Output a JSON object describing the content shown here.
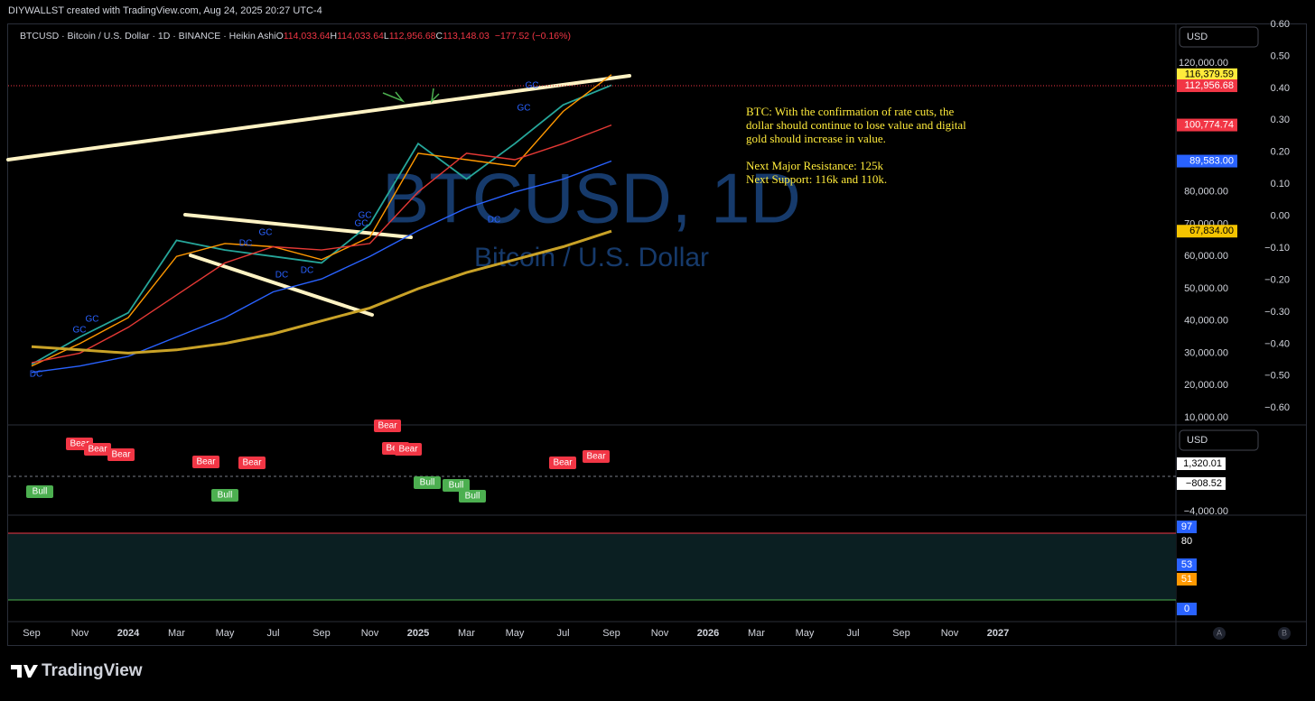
{
  "header": {
    "credit": "DIYWALLST created with TradingView.com, Aug 24, 2025 20:27 UTC-4"
  },
  "footer": {
    "brand": "TradingView"
  },
  "chart_data": {
    "type": "line",
    "legend": {
      "symbol": "BTCUSD · Bitcoin / U.S. Dollar · 1D · BINANCE · Heikin Ashi",
      "open_label": "O",
      "open": "114,033.64",
      "high_label": "H",
      "high": "114,033.64",
      "low_label": "L",
      "low": "112,956.68",
      "close_label": "C",
      "close": "113,148.03",
      "change": "−177.52 (−0.16%)"
    },
    "currency": "USD",
    "watermark_title": "BTCUSD, 1D",
    "watermark_subtitle": "Bitcoin / U.S. Dollar",
    "notes": [
      "BTC: With the confirmation of rate cuts, the",
      "dollar should continue to lose value and digital",
      "gold should increase in value.",
      "Next Major Resistance: 125k",
      "Next Support: 116k and 110k."
    ],
    "categories": [
      "Sep",
      "Nov",
      "2024",
      "Mar",
      "May",
      "Jul",
      "Sep",
      "Nov",
      "2025",
      "Mar",
      "May",
      "Jul",
      "Sep",
      "Nov",
      "2026",
      "Mar",
      "May",
      "Jul",
      "Sep",
      "Nov",
      "2027"
    ],
    "series": [
      {
        "color": "#26a69a",
        "values": [
          26500,
          35000,
          42500,
          65000,
          62000,
          60000,
          58000,
          70000,
          95000,
          84000,
          95000,
          107000,
          113148.03,
          null,
          null,
          null,
          null,
          null,
          null,
          null,
          null
        ]
      },
      {
        "color": "#ff9800",
        "values": [
          26000,
          33000,
          41000,
          60000,
          64000,
          63000,
          59000,
          66000,
          92000,
          90000,
          88000,
          105000,
          116379.59,
          null,
          null,
          null,
          null,
          null,
          null,
          null,
          null
        ]
      },
      {
        "color": "#e53935",
        "values": [
          27000,
          30000,
          38000,
          48000,
          58000,
          63000,
          62000,
          64000,
          80000,
          92000,
          90000,
          95000,
          100774.74,
          null,
          null,
          null,
          null,
          null,
          null,
          null,
          null
        ]
      },
      {
        "color": "#2962ff",
        "values": [
          24000,
          26000,
          29000,
          35000,
          41000,
          49000,
          53000,
          60000,
          68000,
          75000,
          80000,
          84000,
          89583,
          null,
          null,
          null,
          null,
          null,
          null,
          null,
          null
        ]
      },
      {
        "color": "#c9a227",
        "values": [
          32000,
          31000,
          30000,
          31000,
          33000,
          36000,
          40000,
          44000,
          50000,
          55000,
          59000,
          63000,
          67834,
          null,
          null,
          null,
          null,
          null,
          null,
          null,
          null
        ]
      }
    ],
    "ylim": [
      8000,
      132000
    ],
    "yticks": [
      {
        "value": 120000,
        "label": "120,000.00"
      },
      {
        "value": 80000,
        "label": "80,000.00"
      },
      {
        "value": 70000,
        "label": "70,000.00"
      },
      {
        "value": 60000,
        "label": "60,000.00"
      },
      {
        "value": 50000,
        "label": "50,000.00"
      },
      {
        "value": 40000,
        "label": "40,000.00"
      },
      {
        "value": 30000,
        "label": "30,000.00"
      },
      {
        "value": 20000,
        "label": "20,000.00"
      },
      {
        "value": 10000,
        "label": "10,000.00"
      }
    ],
    "y2lim": [
      -0.65,
      0.6
    ],
    "y2ticks": [
      {
        "value": 0.6,
        "label": "0.60"
      },
      {
        "value": 0.5,
        "label": "0.50"
      },
      {
        "value": 0.4,
        "label": "0.40"
      },
      {
        "value": 0.3,
        "label": "0.30"
      },
      {
        "value": 0.2,
        "label": "0.20"
      },
      {
        "value": 0.1,
        "label": "0.10"
      },
      {
        "value": 0,
        "label": "0.00"
      },
      {
        "value": -0.1,
        "label": "−0.10"
      },
      {
        "value": -0.2,
        "label": "−0.20"
      },
      {
        "value": -0.3,
        "label": "−0.30"
      },
      {
        "value": -0.4,
        "label": "−0.40"
      },
      {
        "value": -0.5,
        "label": "−0.50"
      },
      {
        "value": -0.6,
        "label": "−0.60"
      }
    ],
    "price_labels": [
      {
        "value": 116379.59,
        "label": "116,379.59",
        "color": "#ffeb3b"
      },
      {
        "value": 112956.68,
        "label": "112,956.68",
        "color": "#f23645"
      },
      {
        "value": 100774.74,
        "label": "100,774.74",
        "color": "#f23645"
      },
      {
        "value": 89583,
        "label": "89,583.00",
        "color": "#2962ff"
      },
      {
        "value": 67834,
        "label": "67,834.00",
        "color": "#f5c400"
      }
    ],
    "signal_labels": [
      "GC",
      "GC",
      "DC",
      "GC",
      "DC",
      "DC",
      "DC",
      "GC",
      "GC",
      "DC",
      "GC",
      "GC"
    ],
    "oscillator": {
      "currency": "USD",
      "tags": [
        "Bear",
        "Bear",
        "Bear",
        "Bear",
        "Bear",
        "Bear",
        "Bear",
        "Bear",
        "Bear",
        "Bear",
        "Bull",
        "Bull",
        "Bull",
        "Bull",
        "Bull"
      ],
      "labels": [
        "1,320.01",
        "−808.52",
        "−4,000.00"
      ]
    },
    "stochastic": {
      "labels": [
        "97",
        "80",
        "53",
        "51",
        "0"
      ]
    },
    "scale_buttons": [
      "A",
      "B"
    ]
  }
}
